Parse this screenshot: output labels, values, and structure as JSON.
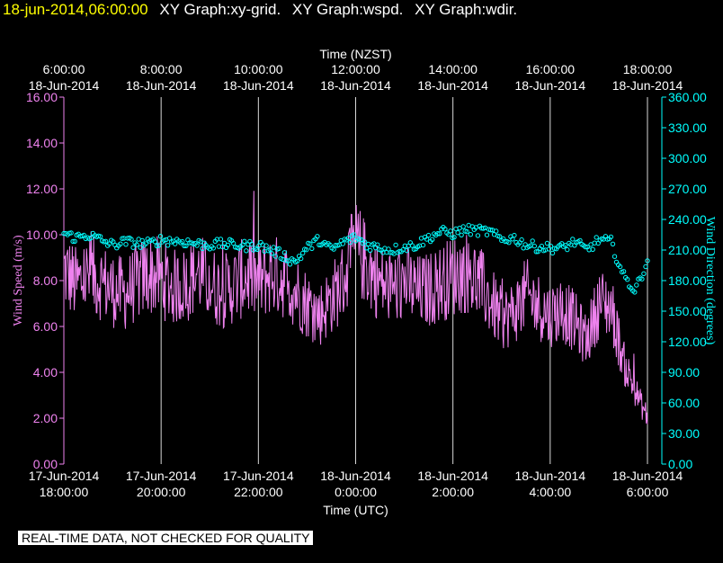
{
  "header": {
    "timestamp": "18-jun-2014,06:00:00",
    "graphs": [
      "XY Graph:xy-grid.",
      "XY Graph:wspd.",
      "XY Graph:wdir."
    ]
  },
  "footer_note": "REAL-TIME DATA, NOT CHECKED FOR QUALITY",
  "colors": {
    "background": "#000000",
    "speed": "#ee82ee",
    "direction": "#00ffff",
    "grid": "#ffffff",
    "title": "#ffff00"
  },
  "chart_data": {
    "type": "line",
    "top_axis": {
      "label": "Time (NZST)",
      "ticks": [
        {
          "time": "6:00:00",
          "date": "18-Jun-2014"
        },
        {
          "time": "8:00:00",
          "date": "18-Jun-2014"
        },
        {
          "time": "10:00:00",
          "date": "18-Jun-2014"
        },
        {
          "time": "12:00:00",
          "date": "18-Jun-2014"
        },
        {
          "time": "14:00:00",
          "date": "18-Jun-2014"
        },
        {
          "time": "16:00:00",
          "date": "18-Jun-2014"
        },
        {
          "time": "18:00:00",
          "date": "18-Jun-2014"
        }
      ]
    },
    "bottom_axis": {
      "label": "Time (UTC)",
      "ticks": [
        {
          "date": "17-Jun-2014",
          "time": "18:00:00"
        },
        {
          "date": "17-Jun-2014",
          "time": "20:00:00"
        },
        {
          "date": "17-Jun-2014",
          "time": "22:00:00"
        },
        {
          "date": "18-Jun-2014",
          "time": "0:00:00"
        },
        {
          "date": "18-Jun-2014",
          "time": "2:00:00"
        },
        {
          "date": "18-Jun-2014",
          "time": "4:00:00"
        },
        {
          "date": "18-Jun-2014",
          "time": "6:00:00"
        }
      ]
    },
    "x_hours_utc_range": [
      0,
      12
    ],
    "left_axis": {
      "label": "Wind Speed (m/s)",
      "ylim": [
        0,
        16
      ],
      "ticks": [
        "0.00",
        "2.00",
        "4.00",
        "6.00",
        "8.00",
        "10.00",
        "12.00",
        "14.00",
        "16.00"
      ]
    },
    "right_axis": {
      "label": "Wind Direction (degrees)",
      "ylim": [
        0,
        360
      ],
      "ticks": [
        "0.00",
        "30.00",
        "60.00",
        "90.00",
        "120.00",
        "150.00",
        "180.00",
        "210.00",
        "240.00",
        "270.00",
        "300.00",
        "330.00",
        "360.00"
      ]
    },
    "grid": "vertical lines at each 2-hour tick",
    "series": [
      {
        "name": "Wind Speed",
        "style": "line",
        "x_hours_since_1800_utc": [
          0,
          0.25,
          0.5,
          0.75,
          1,
          1.25,
          1.5,
          1.75,
          2,
          2.25,
          2.5,
          2.75,
          3,
          3.25,
          3.5,
          3.75,
          4,
          4.25,
          4.5,
          4.75,
          5,
          5.25,
          5.5,
          5.75,
          6,
          6.25,
          6.5,
          6.75,
          7,
          7.25,
          7.5,
          7.75,
          8,
          8.25,
          8.5,
          8.75,
          9,
          9.25,
          9.5,
          9.75,
          10,
          10.25,
          10.5,
          10.75,
          11,
          11.25,
          11.5,
          11.75,
          12
        ],
        "values": [
          8.5,
          7.8,
          8.2,
          8.0,
          7.6,
          7.4,
          7.9,
          8.3,
          8.1,
          7.7,
          7.8,
          8.4,
          7.9,
          7.5,
          7.8,
          8.2,
          7.9,
          8.3,
          8.1,
          7.6,
          7.0,
          6.5,
          7.2,
          8.0,
          9.5,
          8.6,
          7.9,
          7.6,
          8.0,
          7.5,
          7.6,
          7.9,
          8.2,
          8.4,
          8.0,
          7.2,
          6.3,
          6.6,
          7.4,
          6.9,
          6.5,
          6.8,
          6.2,
          5.4,
          7.0,
          6.9,
          4.5,
          3.2,
          2.0
        ]
      },
      {
        "name": "Wind Direction",
        "style": "markers",
        "x_hours_since_1800_utc": [
          0,
          0.25,
          0.5,
          0.75,
          1,
          1.25,
          1.5,
          1.75,
          2,
          2.25,
          2.5,
          2.75,
          3,
          3.25,
          3.5,
          3.75,
          4,
          4.25,
          4.5,
          4.75,
          5,
          5.25,
          5.5,
          5.75,
          6,
          6.25,
          6.5,
          6.75,
          7,
          7.25,
          7.5,
          7.75,
          8,
          8.25,
          8.5,
          8.75,
          9,
          9.25,
          9.5,
          9.75,
          10,
          10.25,
          10.5,
          10.75,
          11,
          11.25,
          11.5,
          11.75,
          12
        ],
        "values": [
          226,
          222,
          225,
          220,
          215,
          218,
          217,
          216,
          220,
          219,
          218,
          216,
          215,
          216,
          215,
          214,
          215,
          210,
          205,
          198,
          212,
          220,
          210,
          218,
          222,
          215,
          212,
          210,
          213,
          215,
          222,
          228,
          226,
          230,
          229,
          228,
          220,
          222,
          215,
          213,
          212,
          212,
          218,
          210,
          220,
          218,
          185,
          170,
          200
        ]
      }
    ]
  }
}
